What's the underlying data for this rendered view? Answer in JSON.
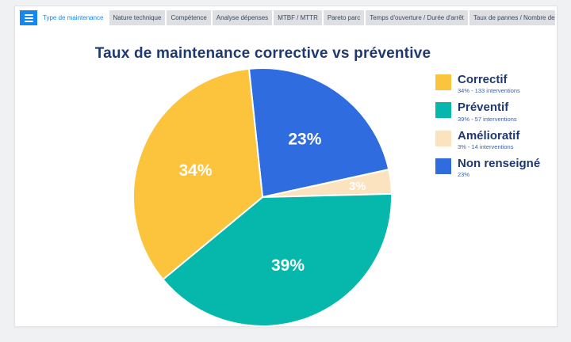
{
  "toolbar": {
    "tabs": [
      {
        "label": "Type de maintenance",
        "active": true
      },
      {
        "label": "Nature technique",
        "active": false
      },
      {
        "label": "Compétence",
        "active": false
      },
      {
        "label": "Analyse dépenses",
        "active": false
      },
      {
        "label": "MTBF / MTTR",
        "active": false
      },
      {
        "label": "Pareto parc",
        "active": false
      },
      {
        "label": "Temps d'ouverture / Durée d'arrêt",
        "active": false
      },
      {
        "label": "Taux de pannes / Nombre de pannes",
        "active": false
      }
    ],
    "menu_icon": "hamburger-icon"
  },
  "title": "Taux de maintenance corrective vs préventive",
  "legend": {
    "position": "right",
    "items": [
      {
        "label": "Correctif",
        "sub": "34% - 133 interventions",
        "color": "#FCC33C"
      },
      {
        "label": "Préventif",
        "sub": "39% - 57 interventions",
        "color": "#06B7AB"
      },
      {
        "label": "Amélioratif",
        "sub": "3% - 14 interventions",
        "color": "#FAE3BE"
      },
      {
        "label": "Non renseigné",
        "sub": "23%",
        "color": "#2E6CDF"
      }
    ]
  },
  "chart_data": {
    "type": "pie",
    "title": "Taux de maintenance corrective vs préventive",
    "rotation_deg": -6,
    "legend_position": "right",
    "slices": [
      {
        "name": "Non renseigné",
        "pct": 23,
        "interventions": null,
        "color": "#2E6CDF",
        "label": "23%"
      },
      {
        "name": "Amélioratif",
        "pct": 3,
        "interventions": 14,
        "color": "#FAE3BE",
        "label": "3%"
      },
      {
        "name": "Préventif",
        "pct": 39,
        "interventions": 57,
        "color": "#06B7AB",
        "label": "39%"
      },
      {
        "name": "Correctif",
        "pct": 34,
        "interventions": 133,
        "color": "#FCC33C",
        "label": "34%"
      }
    ]
  },
  "colors": {
    "accent": "#1787F0",
    "title_text": "#1F3970",
    "tab_bg": "#DDDFE3",
    "tab_text": "#3C4758",
    "panel_bg": "#FFFFFF",
    "page_bg": "#F0F1F3",
    "slice_label_text": "#FFFFFF"
  }
}
